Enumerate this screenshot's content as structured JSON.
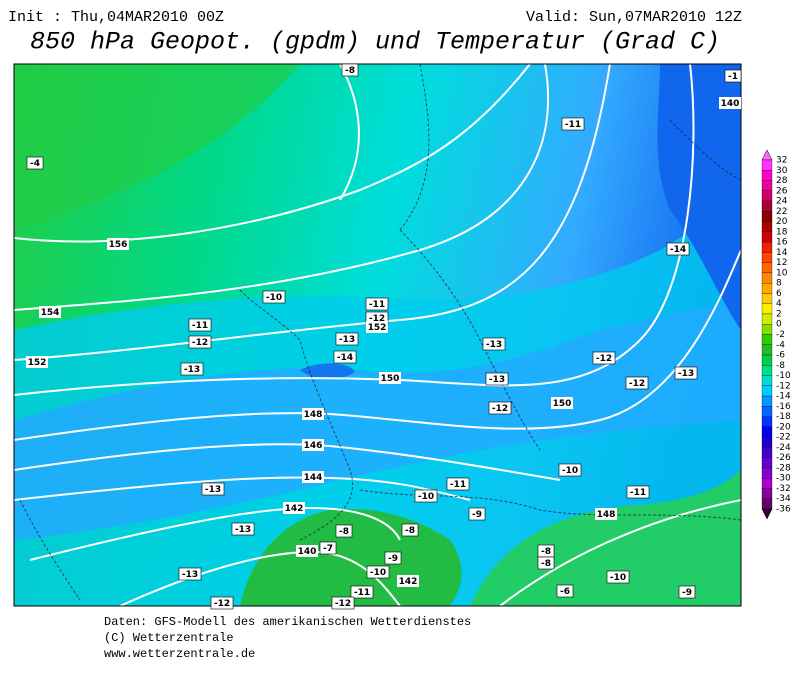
{
  "header": {
    "init": "Init : Thu,04MAR2010 00Z",
    "valid": "Valid: Sun,07MAR2010 12Z",
    "title": "850 hPa Geopot. (gpdm) und Temperatur (Grad C)"
  },
  "map": {
    "temperature_labels": [
      -8,
      -1,
      -4,
      -11,
      -14,
      -10,
      -11,
      -12,
      -11,
      -12,
      -13,
      -14,
      -13,
      -12,
      -13,
      -13,
      -12,
      -13,
      -12,
      -10,
      -11,
      -10,
      -13,
      -11,
      -9,
      -13,
      -8,
      -8,
      -7,
      -9,
      -8,
      -8,
      -10,
      -13,
      -10,
      -6,
      -9,
      -11,
      -12,
      -12
    ],
    "geopotential_labels": [
      156,
      154,
      152,
      152,
      150,
      150,
      148,
      146,
      144,
      142,
      140,
      142,
      148,
      140
    ]
  },
  "legend": {
    "labels": [
      32,
      30,
      28,
      26,
      24,
      22,
      20,
      18,
      16,
      14,
      12,
      10,
      8,
      6,
      4,
      2,
      0,
      -2,
      -4,
      -6,
      -8,
      -10,
      -12,
      -14,
      -16,
      -18,
      -20,
      -22,
      -24,
      -26,
      -28,
      -30,
      -32,
      -34,
      -36
    ],
    "colors": [
      "#ff66ff",
      "#ff33ff",
      "#ff00cc",
      "#ee0099",
      "#cc0066",
      "#aa0033",
      "#880000",
      "#aa0000",
      "#cc0000",
      "#ee2200",
      "#ff4400",
      "#ff6600",
      "#ff8800",
      "#ffaa00",
      "#ffcc00",
      "#ffee00",
      "#ccee00",
      "#88dd00",
      "#33cc00",
      "#22bb22",
      "#00cc44",
      "#00dd88",
      "#00ddcc",
      "#00ccff",
      "#0099ff",
      "#0066ff",
      "#0033ff",
      "#0000ee",
      "#2200cc",
      "#4400cc",
      "#6600cc",
      "#8800cc",
      "#aa00cc",
      "#880099",
      "#660066",
      "#330033"
    ]
  },
  "footer": [
    "Daten: GFS-Modell des amerikanischen Wetterdienstes",
    "(C) Wetterzentrale",
    "www.wetterzentrale.de"
  ]
}
